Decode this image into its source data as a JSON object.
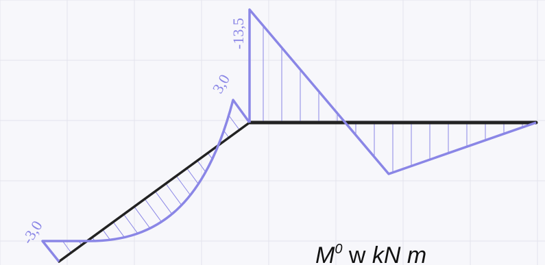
{
  "diagram": {
    "colors": {
      "background": "#f7f7fb",
      "grid": "#e3e3ec",
      "beam": "#222222",
      "moment": "#8a86e6",
      "hatch": "#8a86e6",
      "text": "#111111"
    },
    "labels": {
      "left_end": "-3,0",
      "middle_peak": "3,0",
      "top": "-13,5"
    },
    "unit": {
      "symbol": "M",
      "superscript": "0",
      "connector": " w ",
      "unit_italic": "kN m"
    }
  }
}
